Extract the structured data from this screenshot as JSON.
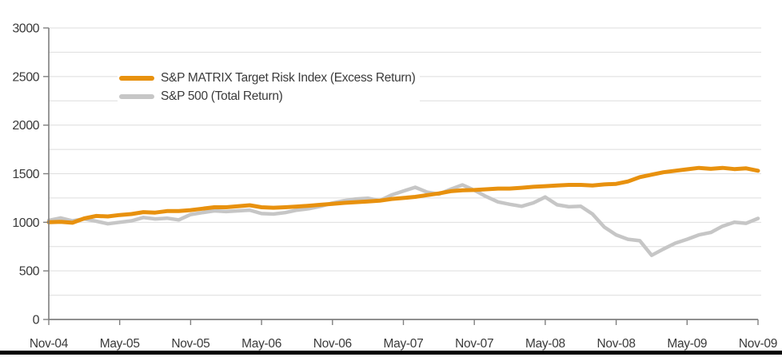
{
  "chart_data": {
    "type": "line",
    "title": "",
    "xlabel": "",
    "ylabel": "",
    "ylim": [
      0,
      3000
    ],
    "y_tick_step": 500,
    "y_minor_grid_step": 250,
    "y_ticks": [
      0,
      500,
      1000,
      1500,
      2000,
      2500,
      3000
    ],
    "x_tick_labels": [
      "Nov-04",
      "May-05",
      "Nov-05",
      "May-06",
      "Nov-06",
      "May-07",
      "Nov-07",
      "May-08",
      "Nov-08",
      "May-09",
      "Nov-09"
    ],
    "x_tick_every_n_points": 6,
    "x_start": "Nov-04",
    "x_end": "Nov-09",
    "x_frequency": "monthly",
    "grid": true,
    "legend_position": "upper-left-inside",
    "series": [
      {
        "name": "S&P MATRIX Target Risk Index (Excess Return)",
        "color": "#E8910E",
        "line_width": 5,
        "values": [
          1000,
          1005,
          995,
          1040,
          1065,
          1060,
          1075,
          1085,
          1105,
          1100,
          1115,
          1115,
          1125,
          1140,
          1155,
          1155,
          1165,
          1175,
          1155,
          1150,
          1155,
          1162,
          1170,
          1180,
          1190,
          1200,
          1207,
          1215,
          1222,
          1240,
          1250,
          1262,
          1280,
          1297,
          1320,
          1330,
          1332,
          1340,
          1347,
          1347,
          1355,
          1365,
          1372,
          1378,
          1385,
          1385,
          1378,
          1390,
          1396,
          1420,
          1465,
          1490,
          1515,
          1530,
          1545,
          1560,
          1550,
          1560,
          1548,
          1555,
          1530
        ]
      },
      {
        "name": "S&P 500 (Total Return)",
        "color": "#C6C6C6",
        "line_width": 4.5,
        "values": [
          1020,
          1045,
          1015,
          1035,
          1012,
          985,
          1000,
          1015,
          1050,
          1035,
          1042,
          1025,
          1080,
          1100,
          1118,
          1110,
          1118,
          1125,
          1090,
          1085,
          1100,
          1125,
          1140,
          1165,
          1198,
          1223,
          1240,
          1248,
          1223,
          1281,
          1322,
          1360,
          1310,
          1290,
          1340,
          1385,
          1330,
          1265,
          1210,
          1185,
          1165,
          1200,
          1260,
          1180,
          1160,
          1165,
          1085,
          950,
          870,
          825,
          810,
          660,
          725,
          785,
          825,
          870,
          895,
          960,
          1000,
          990,
          1040
        ]
      }
    ]
  },
  "colors": {
    "axis": "#7f7f7f",
    "grid": "#dedede",
    "tick_text": "#3a3a3a",
    "bottom_rule": "#000000",
    "background": "#ffffff"
  }
}
